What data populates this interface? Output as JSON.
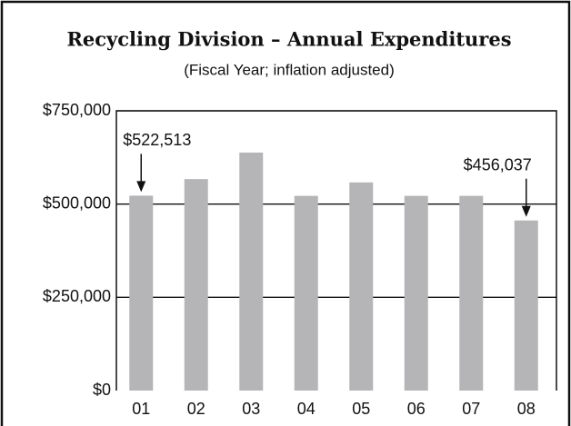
{
  "chart_data": {
    "type": "bar",
    "title": "Recycling Division – Annual Expenditures",
    "subtitle": "(Fiscal Year; inflation adjusted)",
    "categories": [
      "01",
      "02",
      "03",
      "04",
      "05",
      "06",
      "07",
      "08"
    ],
    "values": [
      522513,
      567000,
      638000,
      522000,
      558000,
      522000,
      522000,
      456037
    ],
    "value_labels": [
      "$522,513",
      null,
      null,
      null,
      null,
      null,
      null,
      "$456,037"
    ],
    "color": "#b5b5b7",
    "ylim": [
      0,
      750000
    ],
    "yticks": [
      {
        "value": 0,
        "label": "$0"
      },
      {
        "value": 250000,
        "label": "$250,000"
      },
      {
        "value": 500000,
        "label": "$500,000"
      },
      {
        "value": 750000,
        "label": "$750,000"
      }
    ],
    "grid": true
  }
}
